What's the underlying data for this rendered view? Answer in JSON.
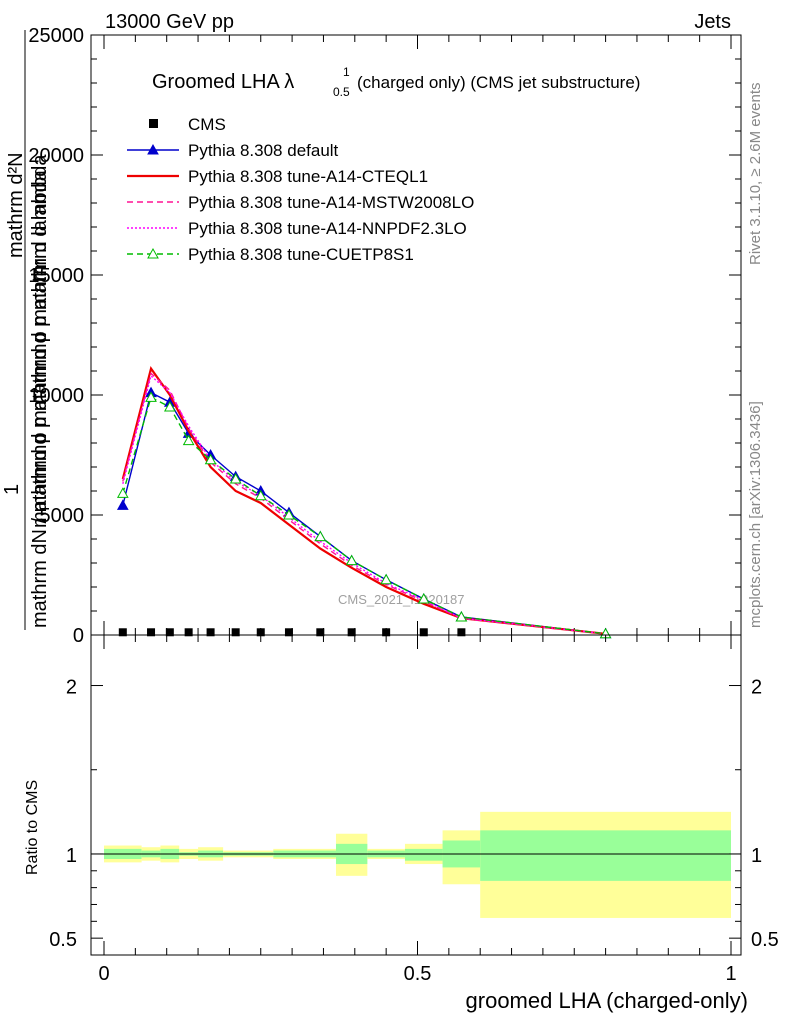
{
  "header": {
    "left": "13000 GeV pp",
    "right": "Jets"
  },
  "side_text": {
    "rivet": "Rivet 3.1.10, ≥ 2.6M events",
    "mcplots": "mcplots.cern.ch [arXiv:1306.3436]"
  },
  "watermark": "CMS_2021_I1920187",
  "chart_data": [
    {
      "type": "line",
      "title_main": "Groomed LHA λ",
      "title_sup": "1",
      "title_sub": "0.5",
      "title_rest": "(charged only) (CMS jet substructure)",
      "ylabel_top": "1",
      "ylabel_lines": [
        "mathrm d²N",
        "mathrm dN / mathrmd p_T mathrmd p_T mathrm d lambda"
      ],
      "ylabel_render_top": "mathrm d²N",
      "ylabel_render_mid": "mathrmd p mathrmd p  mathrm d lambda",
      "ylabel_render_bot": "mathrm dN / mathrmd p mathrmd p  mathrm d lambda",
      "ylim": [
        0,
        25000
      ],
      "yticks": [
        0,
        5000,
        10000,
        15000,
        20000,
        25000
      ],
      "ytick_labels": [
        "0",
        "5000",
        "10000",
        "15000",
        "20000",
        "25000"
      ],
      "xlim": [
        0,
        1
      ],
      "log_y": false,
      "legend_placement": "top-left",
      "cms": {
        "name": "CMS",
        "color": "#000000",
        "x": [
          0.03,
          0.075,
          0.105,
          0.135,
          0.17,
          0.21,
          0.25,
          0.295,
          0.345,
          0.395,
          0.45,
          0.51,
          0.57
        ],
        "y": [
          30,
          30,
          30,
          30,
          30,
          30,
          30,
          30,
          30,
          30,
          30,
          30,
          30
        ]
      },
      "series": [
        {
          "name": "Pythia 8.308 default",
          "color": "#0000cc",
          "style": "solid",
          "marker": "triangle-filled",
          "x": [
            0.03,
            0.075,
            0.105,
            0.135,
            0.17,
            0.21,
            0.25,
            0.295,
            0.345,
            0.395,
            0.45,
            0.51,
            0.57,
            0.8
          ],
          "y": [
            5400,
            10100,
            9700,
            8400,
            7500,
            6600,
            6000,
            5100,
            4100,
            3100,
            2300,
            1500,
            750,
            50
          ]
        },
        {
          "name": "Pythia 8.308 tune-A14-CTEQL1",
          "color": "#ee0000",
          "style": "solid",
          "marker": "none",
          "x": [
            0.03,
            0.075,
            0.105,
            0.135,
            0.17,
            0.21,
            0.25,
            0.295,
            0.345,
            0.395,
            0.45,
            0.51,
            0.57,
            0.8
          ],
          "y": [
            6500,
            11100,
            10000,
            8500,
            7000,
            6000,
            5500,
            4600,
            3600,
            2800,
            2000,
            1300,
            700,
            50
          ]
        },
        {
          "name": "Pythia 8.308 tune-A14-MSTW2008LO",
          "color": "#ff1493",
          "style": "dashed",
          "marker": "none",
          "x": [
            0.03,
            0.075,
            0.105,
            0.135,
            0.17,
            0.21,
            0.25,
            0.295,
            0.345,
            0.395,
            0.45,
            0.51,
            0.57,
            0.8
          ],
          "y": [
            6400,
            10900,
            10200,
            8600,
            7200,
            6300,
            5700,
            4800,
            3800,
            2900,
            2100,
            1400,
            700,
            50
          ]
        },
        {
          "name": "Pythia 8.308 tune-A14-NNPDF2.3LO",
          "color": "#ff00ff",
          "style": "dotted",
          "marker": "none",
          "x": [
            0.03,
            0.075,
            0.105,
            0.135,
            0.17,
            0.21,
            0.25,
            0.295,
            0.345,
            0.395,
            0.45,
            0.51,
            0.57,
            0.8
          ],
          "y": [
            6300,
            10800,
            10100,
            8700,
            7300,
            6400,
            5800,
            4900,
            3900,
            3000,
            2150,
            1450,
            700,
            50
          ]
        },
        {
          "name": "Pythia 8.308 tune-CUETP8S1",
          "color": "#00bb00",
          "style": "dashed",
          "marker": "triangle-open",
          "x": [
            0.03,
            0.075,
            0.105,
            0.135,
            0.17,
            0.21,
            0.25,
            0.295,
            0.345,
            0.395,
            0.45,
            0.51,
            0.57,
            0.8
          ],
          "y": [
            5900,
            9900,
            9500,
            8100,
            7300,
            6500,
            5800,
            5000,
            4100,
            3100,
            2300,
            1500,
            750,
            50
          ]
        }
      ]
    },
    {
      "type": "area",
      "ylabel": "Ratio to CMS",
      "xlabel": "groomed LHA (charged-only)",
      "ylim": [
        0.4,
        2.3
      ],
      "yticks": [
        0.5,
        1,
        2
      ],
      "ytick_labels": [
        "0.5",
        "1",
        "2"
      ],
      "xlim": [
        0,
        1
      ],
      "xticks": [
        0,
        0.5,
        1
      ],
      "xtick_labels": [
        "0",
        "0.5",
        "1"
      ],
      "band_colors": {
        "stat": "#99ff99",
        "total": "#ffff99"
      },
      "reference_line": 1,
      "bins": [
        {
          "lo": 0.0,
          "hi": 0.06,
          "stat": [
            0.97,
            1.03
          ],
          "total": [
            0.95,
            1.05
          ]
        },
        {
          "lo": 0.06,
          "hi": 0.09,
          "stat": [
            0.98,
            1.02
          ],
          "total": [
            0.96,
            1.04
          ]
        },
        {
          "lo": 0.09,
          "hi": 0.12,
          "stat": [
            0.97,
            1.03
          ],
          "total": [
            0.95,
            1.05
          ]
        },
        {
          "lo": 0.12,
          "hi": 0.15,
          "stat": [
            0.99,
            1.01
          ],
          "total": [
            0.97,
            1.03
          ]
        },
        {
          "lo": 0.15,
          "hi": 0.19,
          "stat": [
            0.98,
            1.02
          ],
          "total": [
            0.96,
            1.04
          ]
        },
        {
          "lo": 0.19,
          "hi": 0.27,
          "stat": [
            0.99,
            1.01
          ],
          "total": [
            0.98,
            1.02
          ]
        },
        {
          "lo": 0.27,
          "hi": 0.37,
          "stat": [
            0.98,
            1.02
          ],
          "total": [
            0.97,
            1.03
          ]
        },
        {
          "lo": 0.37,
          "hi": 0.42,
          "stat": [
            0.94,
            1.06
          ],
          "total": [
            0.87,
            1.12
          ]
        },
        {
          "lo": 0.42,
          "hi": 0.48,
          "stat": [
            0.98,
            1.02
          ],
          "total": [
            0.97,
            1.03
          ]
        },
        {
          "lo": 0.48,
          "hi": 0.54,
          "stat": [
            0.96,
            1.03
          ],
          "total": [
            0.94,
            1.06
          ]
        },
        {
          "lo": 0.54,
          "hi": 0.6,
          "stat": [
            0.92,
            1.08
          ],
          "total": [
            0.82,
            1.14
          ]
        },
        {
          "lo": 0.6,
          "hi": 1.0,
          "stat": [
            0.84,
            1.14
          ],
          "total": [
            0.62,
            1.25
          ]
        }
      ]
    }
  ]
}
